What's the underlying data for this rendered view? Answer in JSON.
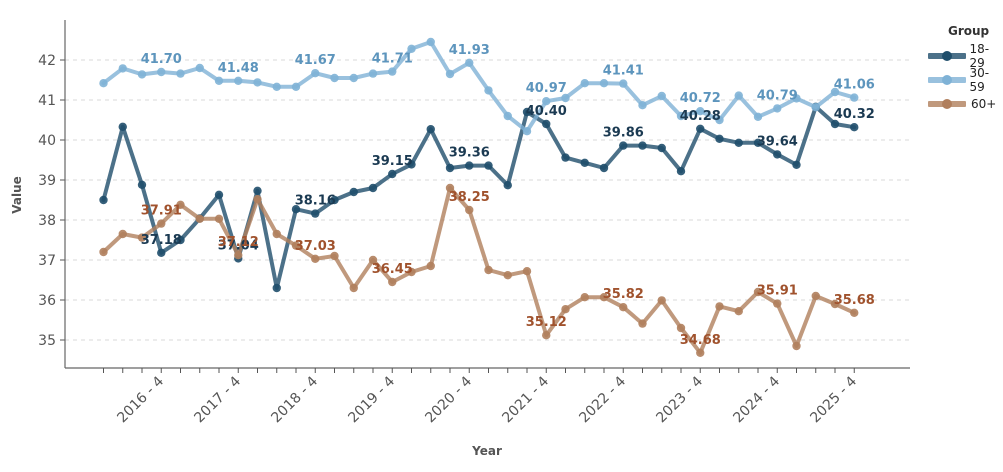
{
  "chart_data": {
    "type": "line",
    "title": "",
    "xlabel": "Year",
    "ylabel": "Value",
    "ylim": [
      34.3,
      43.0
    ],
    "yticks": [
      35,
      36,
      37,
      38,
      39,
      40,
      41,
      42
    ],
    "grid": "horizontal dashed",
    "legend_placement": "right",
    "legend_title": "Group",
    "categories": [
      "2016 - 1",
      "2016 - 2",
      "2016 - 3",
      "2016 - 4",
      "2017 - 1",
      "2017 - 2",
      "2017 - 3",
      "2017 - 4",
      "2018 - 1",
      "2018 - 2",
      "2018 - 3",
      "2018 - 4",
      "2019 - 1",
      "2019 - 2",
      "2019 - 3",
      "2019 - 4",
      "2020 - 1",
      "2020 - 2",
      "2020 - 3",
      "2020 - 4",
      "2021 - 1",
      "2021 - 2",
      "2021 - 3",
      "2021 - 4",
      "2022 - 1",
      "2022 - 2",
      "2022 - 3",
      "2022 - 4",
      "2023 - 1",
      "2023 - 2",
      "2023 - 3",
      "2023 - 4",
      "2024 - 1",
      "2024 - 2",
      "2024 - 3",
      "2024 - 4",
      "2025 - 1",
      "2025 - 2",
      "2025 - 3",
      "2025 - 4"
    ],
    "tick_labels": [
      "2016 - 4",
      "2017 - 4",
      "2018 - 4",
      "2019 - 4",
      "2020 - 4",
      "2021 - 4",
      "2022 - 4",
      "2023 - 4",
      "2024 - 4",
      "2025 - 4"
    ],
    "series": [
      {
        "name": "18-29",
        "color": "#1f4e6b",
        "label_color": "#1b3a52",
        "values": [
          38.5,
          40.33,
          38.88,
          37.18,
          37.5,
          38.04,
          38.63,
          37.04,
          38.73,
          36.3,
          38.27,
          38.16,
          38.5,
          38.7,
          38.8,
          39.15,
          39.39,
          40.27,
          39.3,
          39.36,
          39.36,
          38.87,
          40.7,
          40.4,
          39.56,
          39.43,
          39.3,
          39.86,
          39.86,
          39.8,
          39.22,
          40.28,
          40.03,
          39.93,
          39.93,
          39.64,
          39.38,
          40.83,
          40.4,
          40.32
        ],
        "labels": {
          "3": "37.18",
          "7": "37.04",
          "11": "38.16",
          "15": "39.15",
          "19": "39.36",
          "23": "40.40",
          "27": "39.86",
          "31": "40.28",
          "35": "39.64",
          "39": "40.32"
        }
      },
      {
        "name": "30-59",
        "color": "#7fb2d6",
        "label_color": "#5d95bd",
        "values": [
          41.42,
          41.79,
          41.64,
          41.7,
          41.66,
          41.8,
          41.48,
          41.48,
          41.44,
          41.33,
          41.33,
          41.67,
          41.55,
          41.55,
          41.66,
          41.71,
          42.28,
          42.45,
          41.65,
          41.93,
          41.24,
          40.6,
          40.22,
          40.97,
          41.05,
          41.42,
          41.42,
          41.41,
          40.87,
          41.1,
          40.6,
          40.72,
          40.5,
          41.11,
          40.58,
          40.79,
          41.04,
          40.82,
          41.2,
          41.06
        ],
        "labels": {
          "3": "41.70",
          "7": "41.48",
          "11": "41.67",
          "15": "41.71",
          "19": "41.93",
          "23": "40.97",
          "27": "41.41",
          "31": "40.72",
          "35": "40.79",
          "39": "41.06"
        }
      },
      {
        "name": "60+",
        "color": "#b07f5d",
        "label_color": "#a0522d",
        "values": [
          37.2,
          37.65,
          37.56,
          37.91,
          38.38,
          38.03,
          38.03,
          37.12,
          38.52,
          37.65,
          37.36,
          37.03,
          37.1,
          36.3,
          37.0,
          36.45,
          36.7,
          36.85,
          38.8,
          38.25,
          36.75,
          36.62,
          36.72,
          35.12,
          35.77,
          36.07,
          36.07,
          35.82,
          35.41,
          35.99,
          35.3,
          34.68,
          35.84,
          35.72,
          36.2,
          35.91,
          34.85,
          36.1,
          35.9,
          35.68
        ],
        "labels": {
          "3": "37.91",
          "7": "37.12",
          "11": "37.03",
          "15": "36.45",
          "19": "38.25",
          "23": "35.12",
          "27": "35.82",
          "31": "34.68",
          "35": "35.91",
          "39": "35.68"
        }
      }
    ]
  }
}
